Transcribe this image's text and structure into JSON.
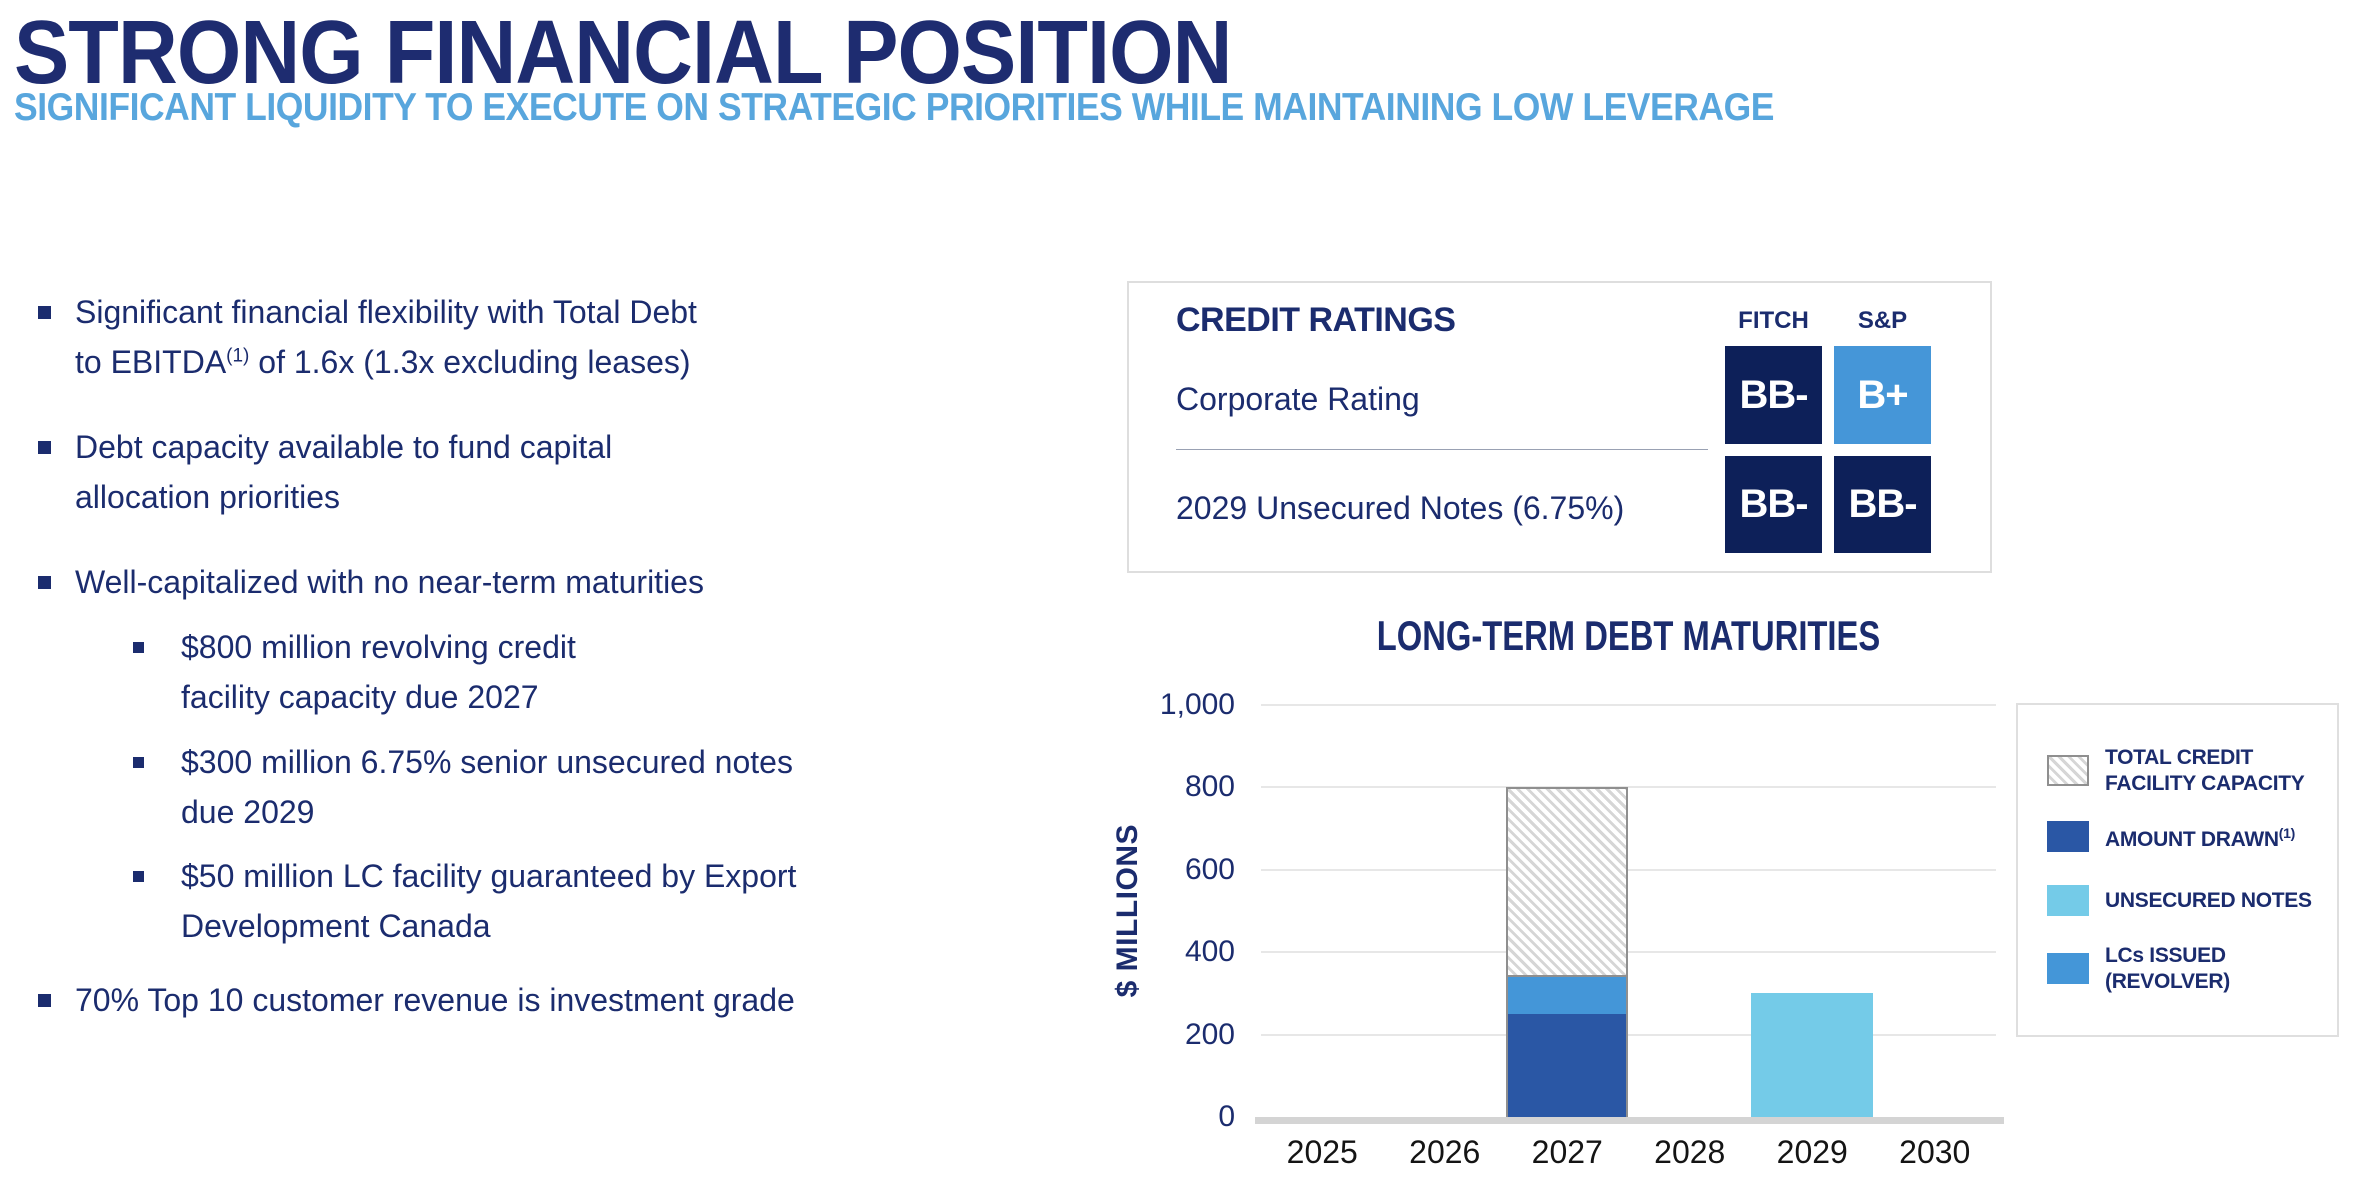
{
  "slide": {
    "title": "STRONG FINANCIAL POSITION",
    "subtitle": "SIGNIFICANT LIQUIDITY TO EXECUTE ON STRATEGIC PRIORITIES WHILE MAINTAINING LOW LEVERAGE"
  },
  "colors": {
    "navy_text": "#1B2C6E",
    "subtitle_blue": "#58A6DD",
    "rating_navy": "#0D2059",
    "rating_blue": "#4596D8",
    "bar_amount_drawn": "#2A57A5",
    "bar_lcs_issued": "#4496D8",
    "bar_unsecured_notes": "#74CBE8",
    "hatch_border": "#8F8F8F",
    "gridline": "#E7E7E7",
    "axis_baseline": "#D4D4D4"
  },
  "bullets": {
    "b1_l1": "Significant financial flexibility with Total Debt",
    "b1_l2_pre": "to EBITDA",
    "b1_l2_sup": "(1)",
    "b1_l2_post": " of 1.6x (1.3x excluding leases)",
    "b2_l1": "Debt capacity available to fund capital",
    "b2_l2": "allocation priorities",
    "b3": "Well-capitalized with no near-term maturities",
    "b3_sub1_l1": "$800 million revolving credit",
    "b3_sub1_l2": "facility capacity due 2027",
    "b3_sub2_l1": "$300 million 6.75% senior unsecured notes",
    "b3_sub2_l2": "due 2029",
    "b3_sub3_l1": "$50 million LC facility guaranteed by Export",
    "b3_sub3_l2": "Development Canada",
    "b4": "70% Top 10 customer revenue is investment grade"
  },
  "credit_ratings": {
    "title": "CREDIT RATINGS",
    "agencies": {
      "fitch": "FITCH",
      "sp": "S&P"
    },
    "rows": [
      {
        "label": "Corporate Rating",
        "fitch": "BB-",
        "fitch_color": "#0D2059",
        "sp": "B+",
        "sp_color": "#4596D8"
      },
      {
        "label": "2029 Unsecured Notes (6.75%)",
        "fitch": "BB-",
        "fitch_color": "#0D2059",
        "sp": "BB-",
        "sp_color": "#0D2059"
      }
    ]
  },
  "chart_data": {
    "type": "bar",
    "stacked": true,
    "title": "LONG-TERM DEBT MATURITIES",
    "ylabel": "$ MILLIONS",
    "xlabel": "",
    "categories": [
      "2025",
      "2026",
      "2027",
      "2028",
      "2029",
      "2030"
    ],
    "ylim": [
      0,
      1000
    ],
    "grid": true,
    "yticks": [
      {
        "v": 0,
        "label": "0"
      },
      {
        "v": 200,
        "label": "200"
      },
      {
        "v": 400,
        "label": "400"
      },
      {
        "v": 600,
        "label": "600"
      },
      {
        "v": 800,
        "label": "800"
      },
      {
        "v": 1000,
        "label": "1,000"
      }
    ],
    "series": [
      {
        "name": "AMOUNT DRAWN",
        "sup": "(1)",
        "color": "#2A57A5",
        "values": [
          0,
          0,
          250,
          0,
          0,
          0
        ]
      },
      {
        "name": "LCs ISSUED (REVOLVER)",
        "color": "#4496D8",
        "values": [
          0,
          0,
          90,
          0,
          0,
          0
        ]
      },
      {
        "name": "UNSECURED NOTES",
        "color": "#74CBE8",
        "values": [
          0,
          0,
          0,
          0,
          300,
          0
        ]
      },
      {
        "name": "TOTAL CREDIT FACILITY CAPACITY",
        "color": "hatch",
        "values": [
          0,
          0,
          460,
          0,
          0,
          0
        ],
        "note": "hatched remainder of $800M revolving credit facility above amounts drawn; 2027 column outlined to 800 total"
      }
    ],
    "legend_position": "right",
    "legend": [
      {
        "lines": [
          "TOTAL CREDIT",
          "FACILITY CAPACITY"
        ],
        "swatch": "hatch"
      },
      {
        "lines": [
          "AMOUNT DRAWN"
        ],
        "sup": "(1)",
        "swatch": "#2A57A5"
      },
      {
        "lines": [
          "UNSECURED NOTES"
        ],
        "swatch": "#74CBE8"
      },
      {
        "lines": [
          "LCs ISSUED",
          "(REVOLVER)"
        ],
        "swatch": "#4496D8"
      }
    ]
  }
}
